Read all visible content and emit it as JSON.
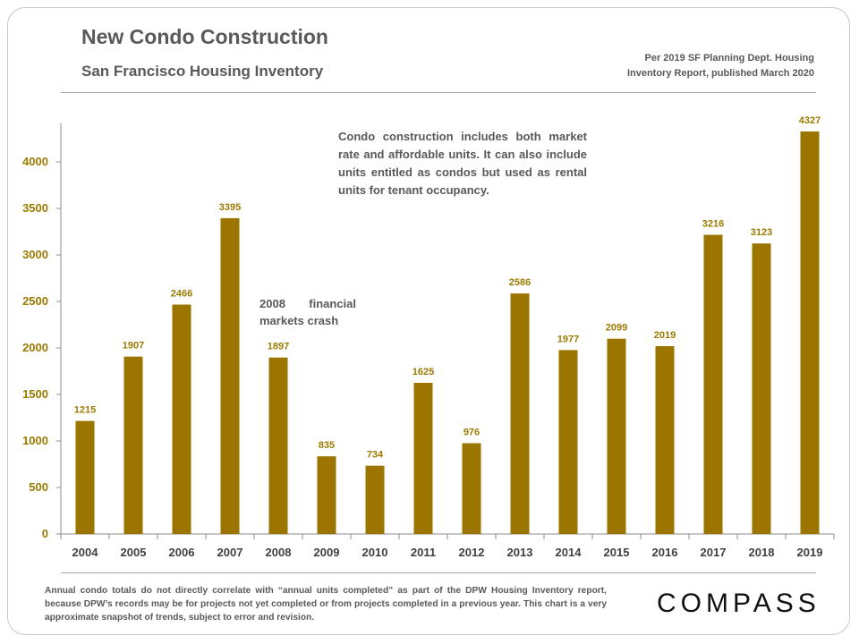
{
  "title": "New Condo Construction",
  "subtitle": "San Francisco Housing Inventory",
  "source_lines": [
    "Per 2019 SF Planning Dept. Housing",
    "Inventory Report, published March 2020"
  ],
  "annotation": "Condo construction includes both market rate and affordable units. It can also include units entitled as condos but used as rental units for tenant occupancy.",
  "crash_note": "2008 financial markets crash",
  "footnote": "Annual condo totals do not directly correlate with “annual units completed” as part of the DPW Housing Inventory report, because DPW’s records may be for projects not yet completed or from projects completed in a previous year. This chart is a very approximate snapshot of trends, subject to error and revision.",
  "logo": "COMPASS",
  "colors": {
    "bar": "#9c7400",
    "axis_text": "#9c7a00",
    "category_text": "#404040",
    "text": "#595959"
  },
  "chart_data": {
    "type": "bar",
    "categories": [
      "2004",
      "2005",
      "2006",
      "2007",
      "2008",
      "2009",
      "2010",
      "2011",
      "2012",
      "2013",
      "2014",
      "2015",
      "2016",
      "2017",
      "2018",
      "2019"
    ],
    "values": [
      1215,
      1907,
      2466,
      3395,
      1897,
      835,
      734,
      1625,
      976,
      2586,
      1977,
      2099,
      2019,
      3216,
      3123,
      4327
    ],
    "yticks": [
      "0",
      "500",
      "1000",
      "1500",
      "2000",
      "2500",
      "3000",
      "3500",
      "4000"
    ],
    "ylim": [
      0,
      4500
    ],
    "grid": false,
    "legend": "none",
    "data_labels": true
  }
}
